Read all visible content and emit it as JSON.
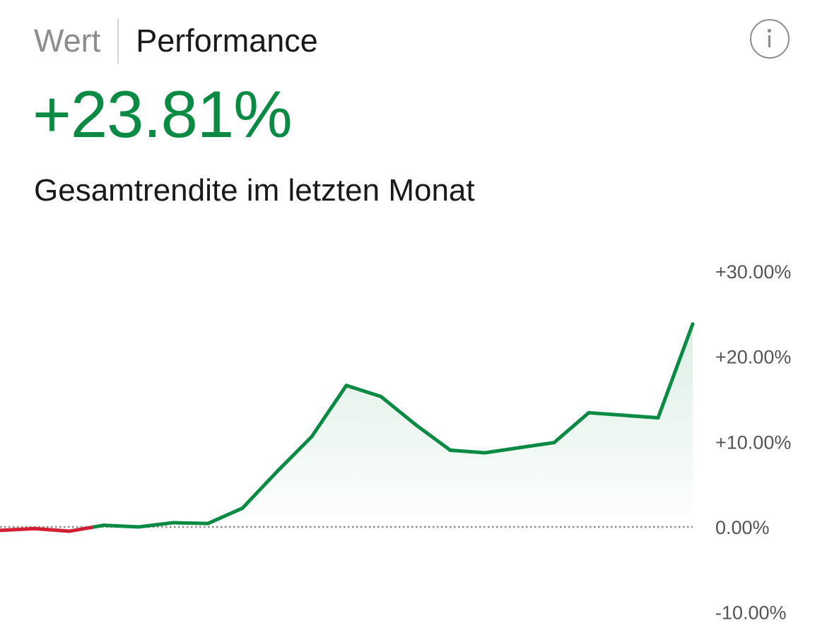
{
  "tabs": [
    {
      "label": "Wert",
      "active": false
    },
    {
      "label": "Performance",
      "active": true
    }
  ],
  "info_icon": "info-circle-icon",
  "headline": {
    "value": "+23.81%",
    "caption": "Gesamtrendite im letzten Monat"
  },
  "colors": {
    "positive": "#0a8a43",
    "negative": "#d21f34",
    "baseline": "#8a8a8a",
    "tick_text": "#555555"
  },
  "chart_data": {
    "type": "line",
    "title": "",
    "xlabel": "",
    "ylabel": "",
    "ylim": [
      -10,
      30
    ],
    "yticks": [
      {
        "value": 30,
        "label": "+30.00%"
      },
      {
        "value": 20,
        "label": "+20.00%"
      },
      {
        "value": 10,
        "label": "+10.00%"
      },
      {
        "value": 0,
        "label": "0.00%"
      },
      {
        "value": -10,
        "label": "-10.00%"
      }
    ],
    "baseline": 0,
    "grid": false,
    "legend": "none",
    "fill_area": true,
    "x": [
      0,
      1,
      2,
      3,
      4,
      5,
      6,
      7,
      8,
      9,
      10,
      11,
      12,
      13,
      14,
      15,
      16,
      17,
      18,
      19,
      20
    ],
    "series": [
      {
        "values": [
          -0.4,
          -0.2,
          -0.5,
          0.2,
          0.0,
          0.5,
          0.4,
          2.2,
          6.5,
          10.6,
          16.6,
          15.3,
          12.0,
          9.0,
          8.7,
          9.3,
          9.9,
          13.4,
          13.1,
          12.8,
          23.81
        ]
      }
    ]
  }
}
